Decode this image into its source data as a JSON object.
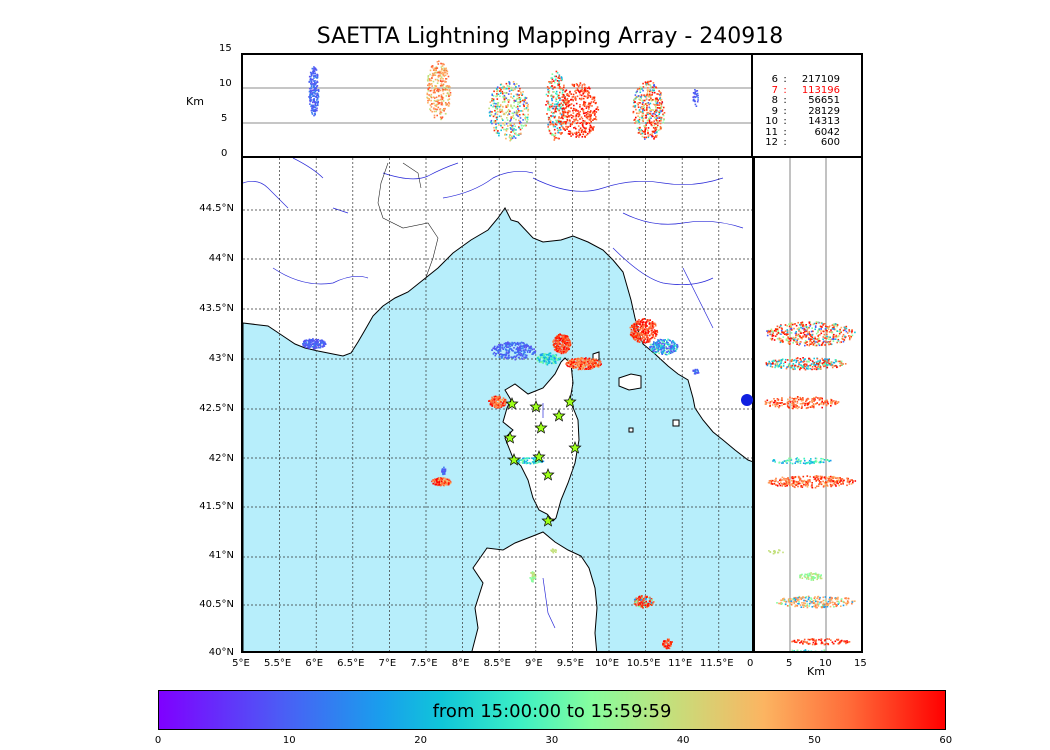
{
  "title": "SAETTA Lightning Mapping Array - 240918",
  "top_panel": {
    "unit_label": "Km",
    "y_ticks": [
      "15",
      "10",
      "5",
      "0"
    ]
  },
  "side_panel": {
    "unit_label": "Km",
    "x_ticks": [
      "0",
      "5",
      "10",
      "15"
    ]
  },
  "stats": [
    {
      "n": "6",
      "count": "217109",
      "color": "#000000"
    },
    {
      "n": "7",
      "count": "113196",
      "color": "#ff0000"
    },
    {
      "n": "8",
      "count": "56651",
      "color": "#000000"
    },
    {
      "n": "9",
      "count": "28129",
      "color": "#000000"
    },
    {
      "n": "10",
      "count": "14313",
      "color": "#000000"
    },
    {
      "n": "11",
      "count": "6042",
      "color": "#000000"
    },
    {
      "n": "12",
      "count": "600",
      "color": "#000000"
    }
  ],
  "map": {
    "lat_labels": [
      "44.5°N",
      "44°N",
      "43.5°N",
      "43°N",
      "42.5°N",
      "42°N",
      "41.5°N",
      "41°N",
      "40.5°N",
      "40°N"
    ],
    "lon_labels": [
      "5°E",
      "5.5°E",
      "6°E",
      "6.5°E",
      "7°E",
      "7.5°E",
      "8°E",
      "8.5°E",
      "9°E",
      "9.5°E",
      "10°E",
      "10.5°E",
      "11°E",
      "11.5°E"
    ],
    "sea_color": "#b7eefb",
    "station_icon": "star-icon",
    "station_color": "#9cff1a"
  },
  "colorbar": {
    "text": "from 15:00:00 to 15:59:59",
    "ticks": [
      "0",
      "10",
      "20",
      "30",
      "40",
      "50",
      "60"
    ]
  }
}
